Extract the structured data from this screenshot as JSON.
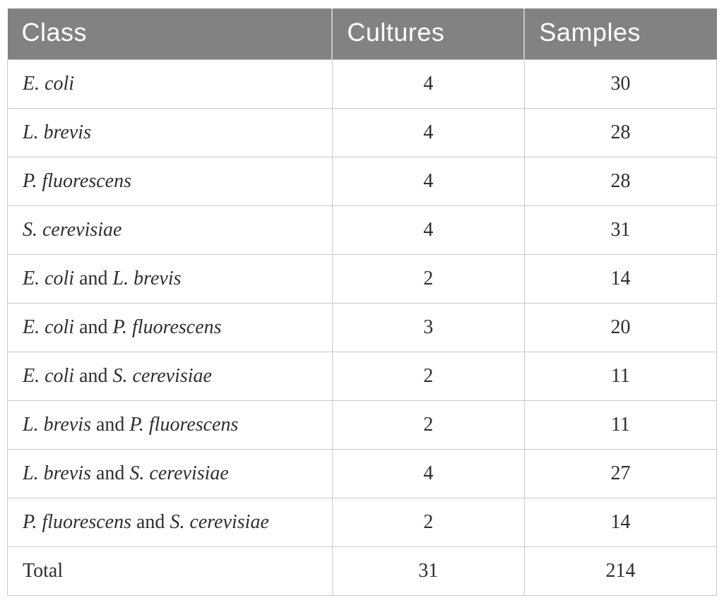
{
  "table": {
    "columns": [
      "Class",
      "Cultures",
      "Samples"
    ],
    "rows": [
      {
        "name": [
          {
            "text": "E. coli",
            "italic": true
          }
        ],
        "cultures": "4",
        "samples": "30"
      },
      {
        "name": [
          {
            "text": "L. brevis",
            "italic": true
          }
        ],
        "cultures": "4",
        "samples": "28"
      },
      {
        "name": [
          {
            "text": "P. fluorescens",
            "italic": true
          }
        ],
        "cultures": "4",
        "samples": "28"
      },
      {
        "name": [
          {
            "text": "S. cerevisiae",
            "italic": true
          }
        ],
        "cultures": "4",
        "samples": "31"
      },
      {
        "name": [
          {
            "text": "E. coli",
            "italic": true
          },
          {
            "text": " and ",
            "italic": false
          },
          {
            "text": "L. brevis",
            "italic": true
          }
        ],
        "cultures": "2",
        "samples": "14"
      },
      {
        "name": [
          {
            "text": "E. coli",
            "italic": true
          },
          {
            "text": " and ",
            "italic": false
          },
          {
            "text": "P. fluorescens",
            "italic": true
          }
        ],
        "cultures": "3",
        "samples": "20"
      },
      {
        "name": [
          {
            "text": "E. coli",
            "italic": true
          },
          {
            "text": " and ",
            "italic": false
          },
          {
            "text": "S. cerevisiae",
            "italic": true
          }
        ],
        "cultures": "2",
        "samples": "11"
      },
      {
        "name": [
          {
            "text": "L. brevis",
            "italic": true
          },
          {
            "text": " and ",
            "italic": false
          },
          {
            "text": "P. fluorescens",
            "italic": true
          }
        ],
        "cultures": "2",
        "samples": "11"
      },
      {
        "name": [
          {
            "text": "L. brevis",
            "italic": true
          },
          {
            "text": " and ",
            "italic": false
          },
          {
            "text": "S. cerevisiae",
            "italic": true
          }
        ],
        "cultures": "4",
        "samples": "27"
      },
      {
        "name": [
          {
            "text": "P. fluorescens",
            "italic": true
          },
          {
            "text": " and ",
            "italic": false
          },
          {
            "text": "S. cerevisiae",
            "italic": true
          }
        ],
        "cultures": "2",
        "samples": "14"
      },
      {
        "name": [
          {
            "text": "Total",
            "italic": false
          }
        ],
        "cultures": "31",
        "samples": "214"
      }
    ],
    "colors": {
      "header_bg": "#828282",
      "header_text": "#ffffff",
      "border": "#c8c8c8",
      "body_text": "#2e2e2e",
      "page_bg": "#ffffff"
    }
  },
  "chart_data": {
    "type": "table",
    "columns": [
      "Class",
      "Cultures",
      "Samples"
    ],
    "rows": [
      [
        "E. coli",
        4,
        30
      ],
      [
        "L. brevis",
        4,
        28
      ],
      [
        "P. fluorescens",
        4,
        28
      ],
      [
        "S. cerevisiae",
        4,
        31
      ],
      [
        "E. coli and L. brevis",
        2,
        14
      ],
      [
        "E. coli and P. fluorescens",
        3,
        20
      ],
      [
        "E. coli and S. cerevisiae",
        2,
        11
      ],
      [
        "L. brevis and P. fluorescens",
        2,
        11
      ],
      [
        "L. brevis and S. cerevisiae",
        4,
        27
      ],
      [
        "P. fluorescens and S. cerevisiae",
        2,
        14
      ],
      [
        "Total",
        31,
        214
      ]
    ]
  }
}
